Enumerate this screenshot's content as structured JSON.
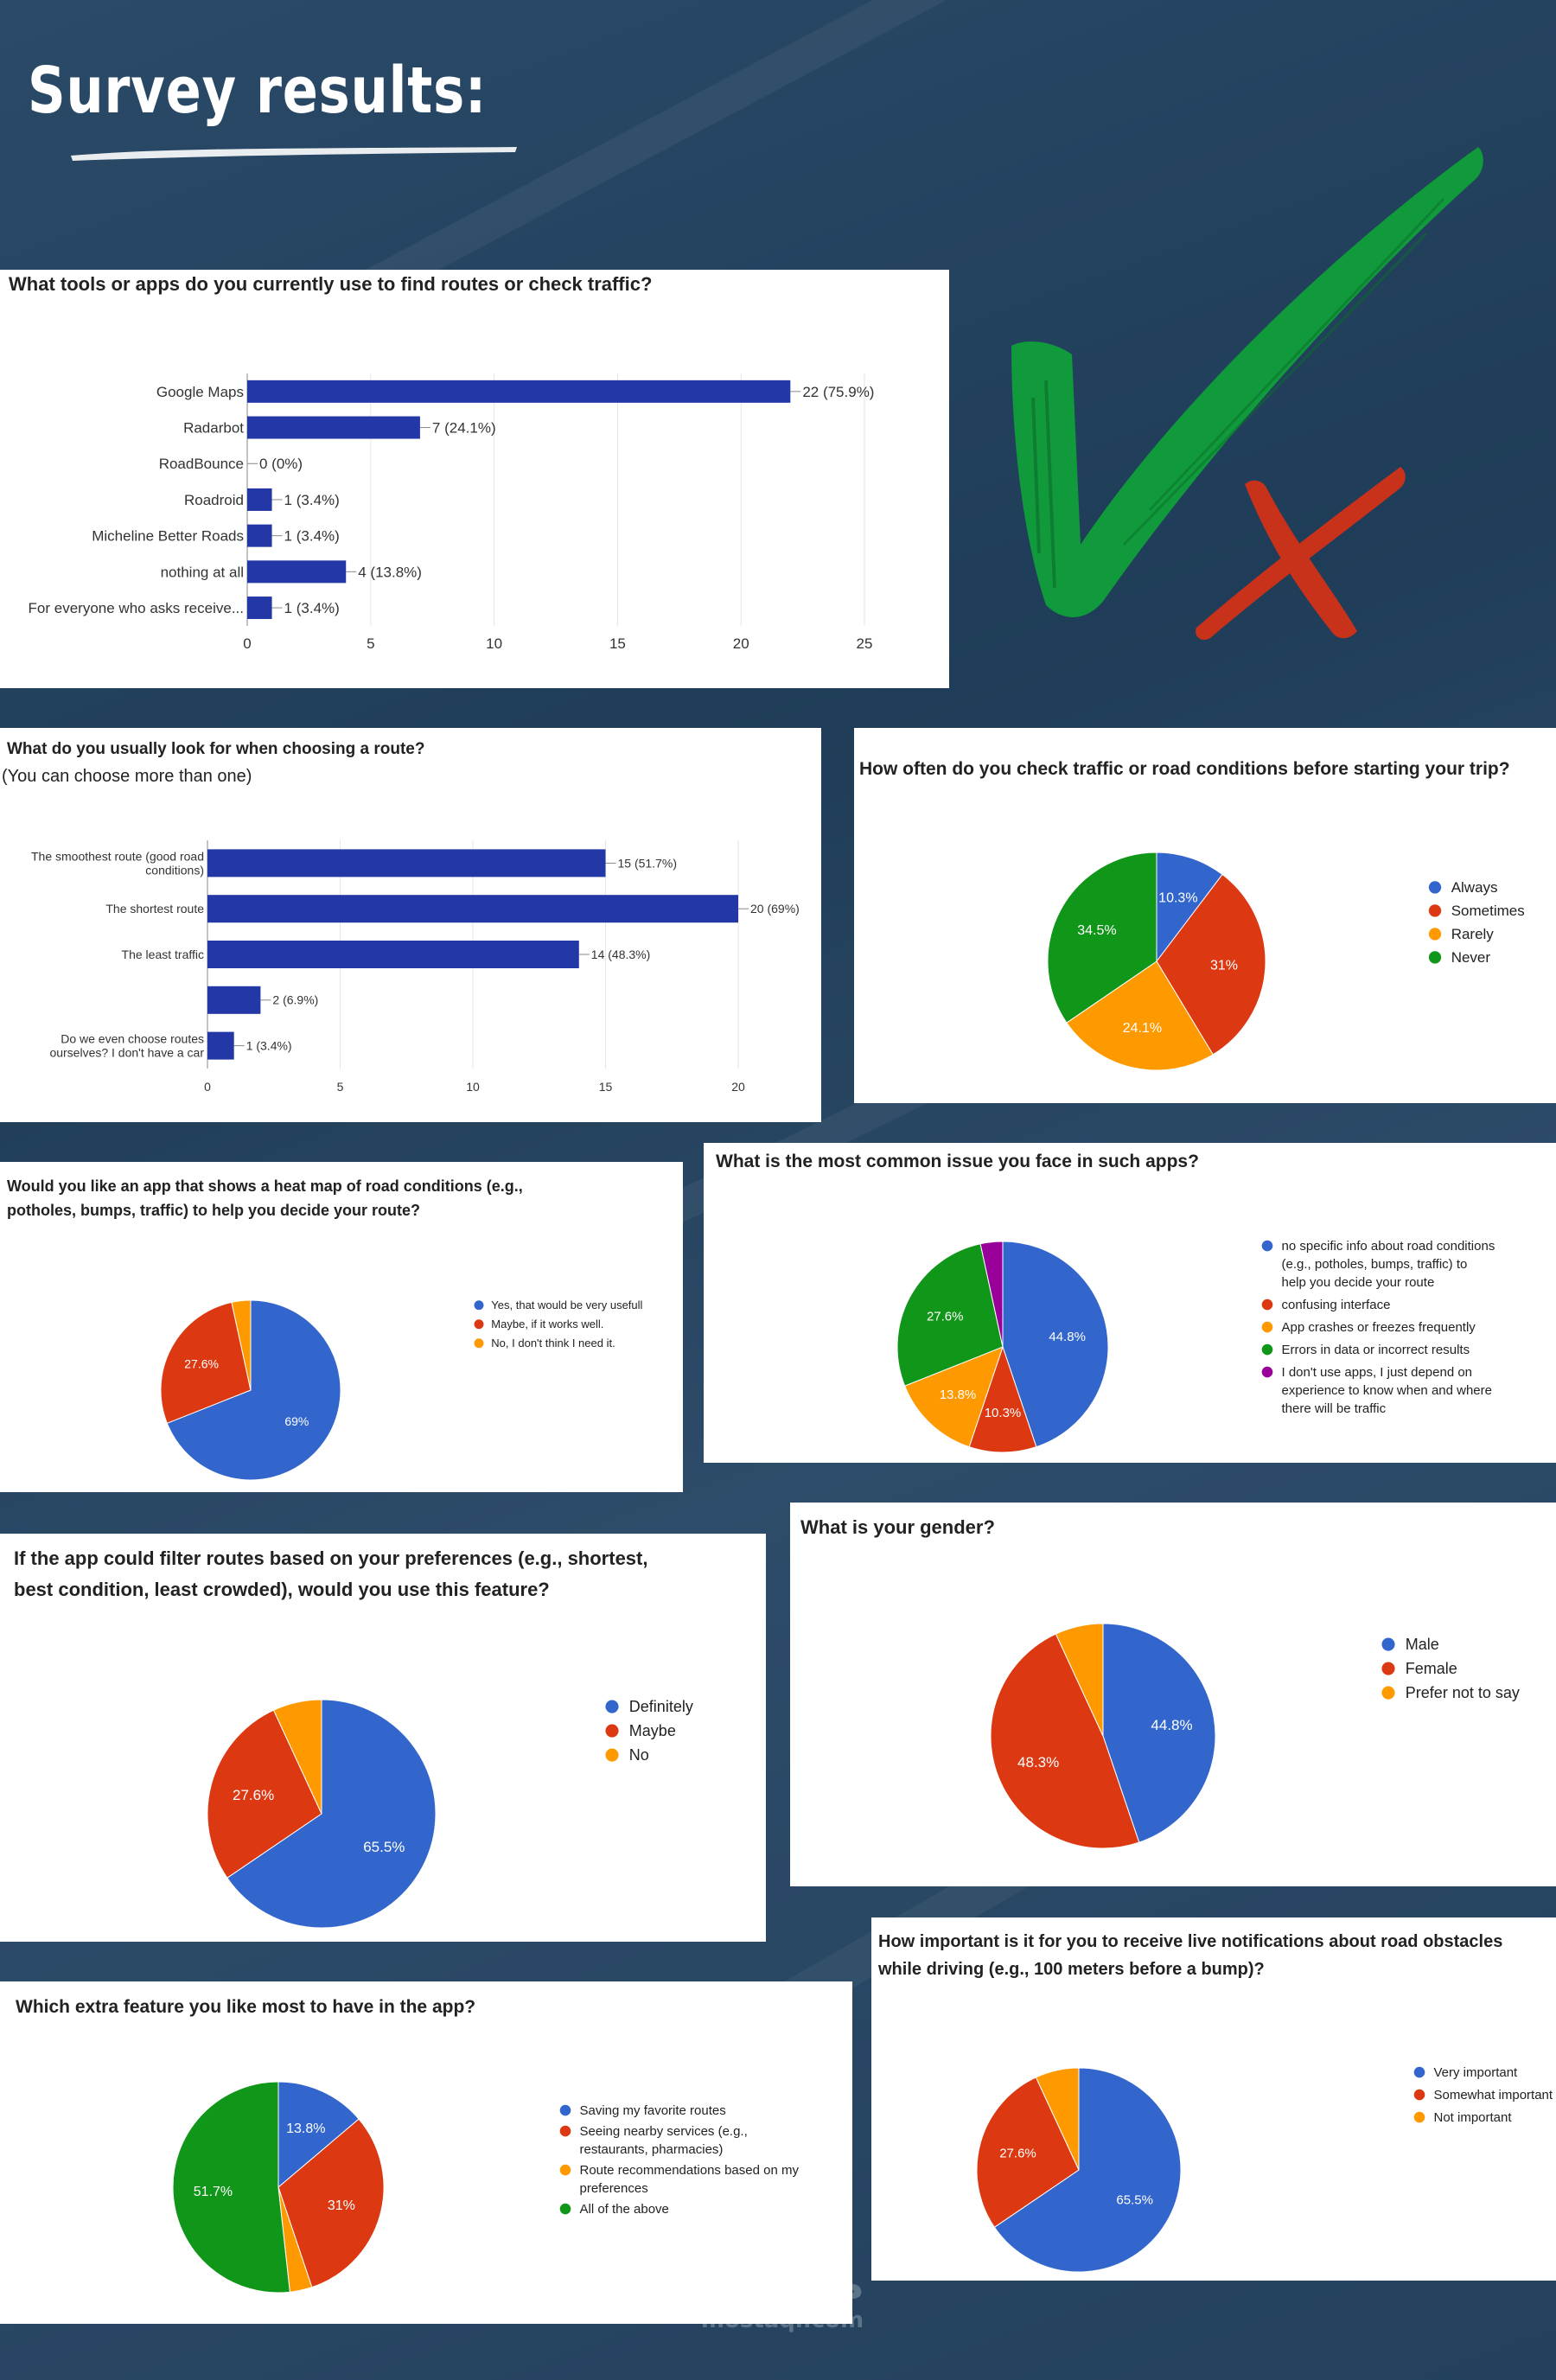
{
  "page": {
    "title": "Survey results:"
  },
  "watermark": {
    "arabic": "مستقل",
    "latin": "mostaql.com"
  },
  "colors": {
    "bar": "#2338a6",
    "blue": "#3366cc",
    "red": "#dc3912",
    "orange": "#ff9900",
    "green": "#109618",
    "purple": "#990099",
    "check": "#109a3c",
    "cross": "#c8321b"
  },
  "icons": {
    "check": "check-mark-icon",
    "cross": "cross-mark-icon"
  },
  "chart_data": [
    {
      "type": "bar",
      "orientation": "horizontal",
      "title": "What tools or apps do you currently use to find routes or check traffic?",
      "categories": [
        "Google Maps",
        "Radarbot",
        "RoadBounce",
        "Roadroid",
        "Micheline Better Roads",
        "nothing at all",
        "For everyone who asks receive..."
      ],
      "values": [
        22,
        7,
        0,
        1,
        1,
        4,
        1
      ],
      "labels": [
        "22 (75.9%)",
        "7 (24.1%)",
        "0 (0%)",
        "1 (3.4%)",
        "1 (3.4%)",
        "4 (13.8%)",
        "1 (3.4%)"
      ],
      "xlim": [
        0,
        25
      ],
      "ticks": [
        0,
        5,
        10,
        15,
        20,
        25
      ],
      "grid": true
    },
    {
      "type": "bar",
      "orientation": "horizontal",
      "title": "What do you usually look for when choosing a route?",
      "subtitle": "(You can choose more than one)",
      "categories": [
        [
          "The smoothest route (good road",
          "conditions)"
        ],
        [
          "The shortest route"
        ],
        [
          "The least traffic"
        ],
        [
          ""
        ],
        [
          "Do we even choose routes",
          "ourselves? I don't have a car"
        ]
      ],
      "values": [
        15,
        20,
        14,
        2,
        1
      ],
      "labels": [
        "15 (51.7%)",
        "20 (69%)",
        "14 (48.3%)",
        "2 (6.9%)",
        "1 (3.4%)"
      ],
      "xlim": [
        0,
        20
      ],
      "ticks": [
        0,
        5,
        10,
        15,
        20
      ],
      "grid": true
    },
    {
      "type": "pie",
      "title": "How often do you check traffic or road conditions before starting your trip?",
      "legend_position": "right",
      "series": [
        {
          "name": "Always",
          "value": 10.3,
          "label": "10.3%"
        },
        {
          "name": "Sometimes",
          "value": 31,
          "label": "31%"
        },
        {
          "name": "Rarely",
          "value": 24.1,
          "label": "24.1%"
        },
        {
          "name": "Never",
          "value": 34.5,
          "label": "34.5%"
        }
      ]
    },
    {
      "type": "pie",
      "title": "Would you like an app that shows a heat map of road conditions (e.g., potholes, bumps, traffic) to help you decide your route?",
      "legend_position": "right",
      "series": [
        {
          "name": "Yes, that would be very usefull",
          "value": 69,
          "label": "69%"
        },
        {
          "name": "Maybe, if it works well.",
          "value": 27.6,
          "label": "27.6%"
        },
        {
          "name": "No, I don't think I need it.",
          "value": 3.4,
          "label": ""
        }
      ]
    },
    {
      "type": "pie",
      "title": "What is the most common issue you face in such apps?",
      "legend_position": "right",
      "series": [
        {
          "name": "no specific info about road conditions (e.g., potholes, bumps, traffic) to help you decide your route",
          "value": 44.8,
          "label": "44.8%"
        },
        {
          "name": "confusing interface",
          "value": 10.3,
          "label": "10.3%"
        },
        {
          "name": "App crashes or freezes frequently",
          "value": 13.8,
          "label": "13.8%"
        },
        {
          "name": "Errors in data or incorrect results",
          "value": 27.6,
          "label": "27.6%"
        },
        {
          "name": "I don't use apps, I just depend on experience to know when and where there will be traffic",
          "value": 3.4,
          "label": ""
        }
      ]
    },
    {
      "type": "pie",
      "title": "If the app could filter routes based on your preferences (e.g., shortest, best condition, least crowded), would you use this feature?",
      "legend_position": "right",
      "series": [
        {
          "name": "Definitely",
          "value": 65.5,
          "label": "65.5%"
        },
        {
          "name": "Maybe",
          "value": 27.6,
          "label": "27.6%"
        },
        {
          "name": "No",
          "value": 6.9,
          "label": ""
        }
      ]
    },
    {
      "type": "pie",
      "title": "What is your gender?",
      "legend_position": "right",
      "series": [
        {
          "name": "Male",
          "value": 44.8,
          "label": "44.8%"
        },
        {
          "name": "Female",
          "value": 48.3,
          "label": "48.3%"
        },
        {
          "name": "Prefer not to say",
          "value": 6.9,
          "label": ""
        }
      ]
    },
    {
      "type": "pie",
      "title": "How important is it for you to receive live notifications about road obstacles while driving (e.g., 100 meters before a bump)?",
      "legend_position": "right",
      "series": [
        {
          "name": "Very important",
          "value": 65.5,
          "label": "65.5%"
        },
        {
          "name": "Somewhat important",
          "value": 27.6,
          "label": "27.6%"
        },
        {
          "name": "Not important",
          "value": 6.9,
          "label": ""
        }
      ]
    },
    {
      "type": "pie",
      "title": "Which extra feature you like most to have in the app?",
      "legend_position": "right",
      "series": [
        {
          "name": "Saving my favorite routes",
          "value": 13.8,
          "label": "13.8%"
        },
        {
          "name": "Seeing nearby services (e.g., restaurants, pharmacies)",
          "value": 31,
          "label": "31%"
        },
        {
          "name": "Route recommendations based on my preferences",
          "value": 3.4,
          "label": ""
        },
        {
          "name": "All of the above",
          "value": 51.7,
          "label": "51.7%"
        }
      ]
    }
  ]
}
